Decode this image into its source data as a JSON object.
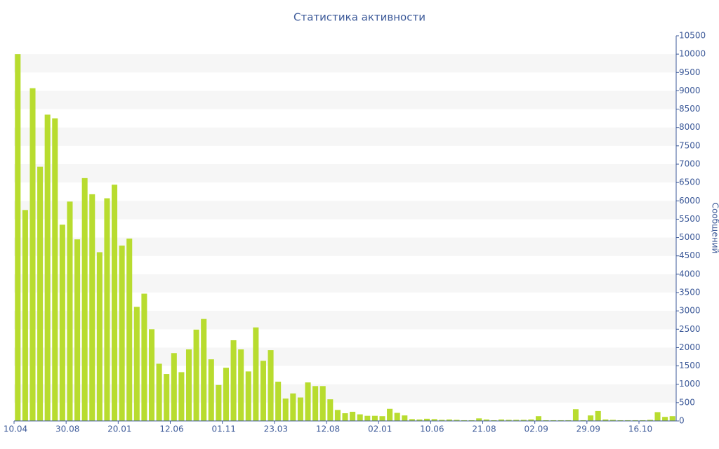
{
  "chart_data": {
    "type": "bar",
    "title": "Статистика активности",
    "y_label": "Сообщений",
    "categories": [
      "10.04",
      null,
      null,
      null,
      null,
      null,
      null,
      "30.08",
      null,
      null,
      null,
      null,
      null,
      null,
      "20.01",
      null,
      null,
      null,
      null,
      null,
      null,
      "12.06",
      null,
      null,
      null,
      null,
      null,
      null,
      "01.11",
      null,
      null,
      null,
      null,
      null,
      null,
      "23.03",
      null,
      null,
      null,
      null,
      null,
      null,
      "12.08",
      null,
      null,
      null,
      null,
      null,
      null,
      "02.01",
      null,
      null,
      null,
      null,
      null,
      null,
      "10.06",
      null,
      null,
      null,
      null,
      null,
      null,
      "21.08",
      null,
      null,
      null,
      null,
      null,
      null,
      "02.09",
      null,
      null,
      null,
      null,
      null,
      null,
      "29.09",
      null,
      null,
      null,
      null,
      null,
      null,
      "16.10",
      null,
      null,
      null,
      null
    ],
    "values": [
      10000,
      5750,
      9070,
      6930,
      8350,
      8250,
      5350,
      5980,
      4950,
      6620,
      6180,
      4600,
      6070,
      6440,
      4780,
      4970,
      3110,
      3470,
      2500,
      1560,
      1280,
      1850,
      1330,
      1950,
      2490,
      2780,
      1680,
      980,
      1450,
      2200,
      1950,
      1350,
      2550,
      1640,
      1930,
      1070,
      610,
      750,
      640,
      1050,
      950,
      950,
      590,
      300,
      210,
      250,
      180,
      140,
      140,
      130,
      330,
      220,
      150,
      50,
      40,
      60,
      50,
      30,
      40,
      30,
      20,
      20,
      70,
      40,
      20,
      40,
      30,
      30,
      30,
      40,
      130,
      20,
      20,
      20,
      20,
      320,
      20,
      150,
      270,
      40,
      30,
      20,
      20,
      20,
      20,
      30,
      240,
      110,
      130
    ],
    "color": "#b8dc2f",
    "ylim": [
      0,
      10500
    ],
    "yticks": [
      0,
      500,
      1000,
      1500,
      2000,
      2500,
      3000,
      3500,
      4000,
      4500,
      5000,
      5500,
      6000,
      6500,
      7000,
      7500,
      8000,
      8500,
      9000,
      9500,
      10000,
      10500
    ],
    "grid": true
  }
}
